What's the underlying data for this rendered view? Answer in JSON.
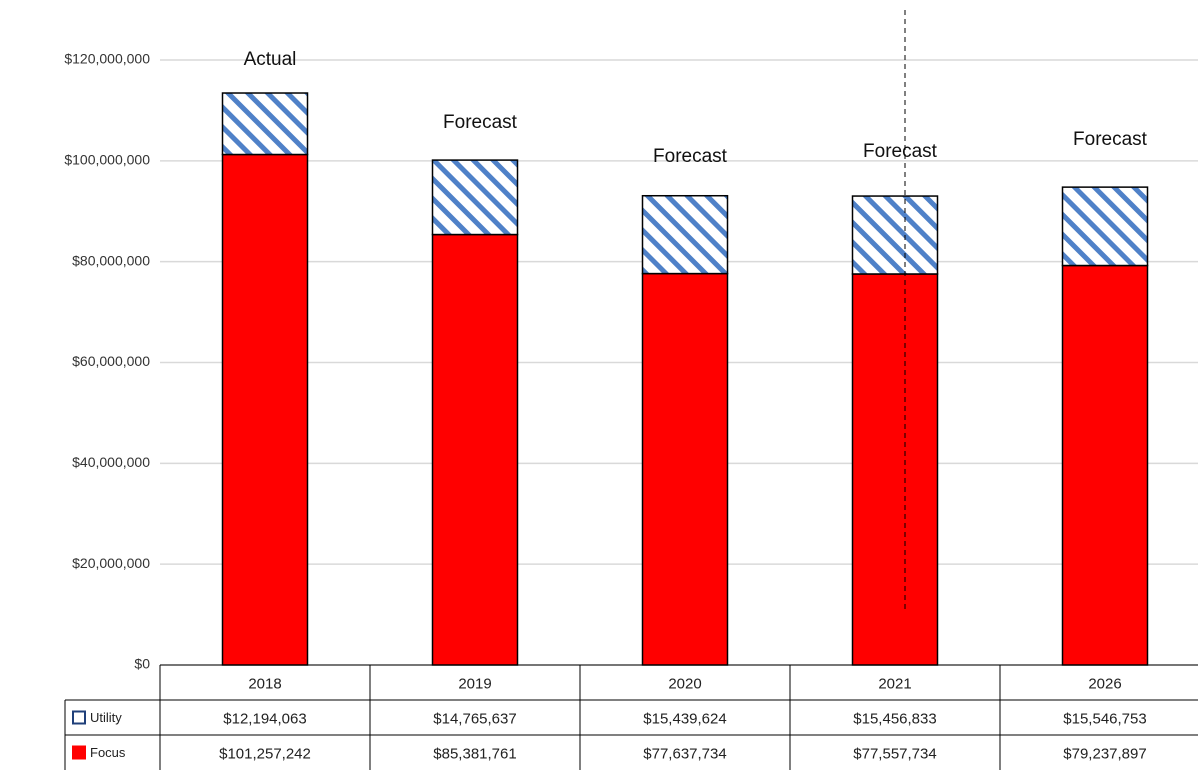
{
  "chart_data": {
    "type": "stacked_bar",
    "categories": [
      "2018",
      "2019",
      "2020",
      "2021",
      "2026"
    ],
    "annotations": [
      "Actual",
      "Forecast",
      "Forecast",
      "Forecast",
      "Forecast"
    ],
    "series": [
      {
        "name": "Utility",
        "color": "#4f81c8",
        "pattern": "hatch",
        "values": [
          12194063,
          14765637,
          15439624,
          15456833,
          15546753
        ],
        "value_labels": [
          "$12,194,063",
          "$14,765,637",
          "$15,439,624",
          "$15,456,833",
          "$15,546,753"
        ]
      },
      {
        "name": "Focus",
        "color": "#ff0000",
        "values": [
          101257242,
          85381761,
          77637734,
          77557734,
          79237897
        ],
        "value_labels": [
          "$101,257,242",
          "$85,381,761",
          "$77,637,734",
          "$77,557,734",
          "$79,237,897"
        ]
      }
    ],
    "ylim": [
      0,
      120000000
    ],
    "yticks": [
      {
        "value": 0,
        "label": "$0"
      },
      {
        "value": 20000000,
        "label": "$20,000,000"
      },
      {
        "value": 40000000,
        "label": "$40,000,000"
      },
      {
        "value": 60000000,
        "label": "$60,000,000"
      },
      {
        "value": 80000000,
        "label": "$80,000,000"
      },
      {
        "value": 100000000,
        "label": "$100,000,000"
      },
      {
        "value": 120000000,
        "label": "$120,000,000"
      }
    ],
    "grid": true
  }
}
